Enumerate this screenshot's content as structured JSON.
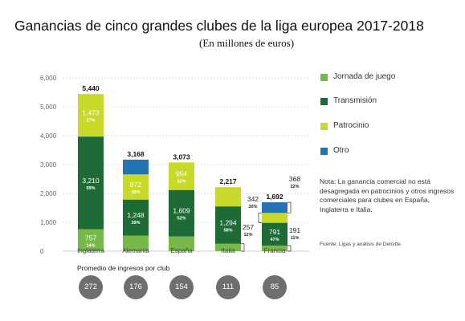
{
  "title": "Ganancias de cinco grandes clubes de la liga europea 2017-2018",
  "subtitle": "(En millones de euros)",
  "chart_data": {
    "type": "bar",
    "stacked": true,
    "ylim": [
      0,
      6000
    ],
    "yticks": [
      "0",
      "1,000",
      "2,000",
      "3,000",
      "4,000",
      "5,000",
      "6,000"
    ],
    "ytick_values": [
      0,
      1000,
      2000,
      3000,
      4000,
      5000,
      6000
    ],
    "grid": true,
    "legend_position": "right",
    "categories": [
      "Inglaterra",
      "Alemania",
      "España",
      "Italia",
      "Francia"
    ],
    "totals": [
      "5,440",
      "3,168",
      "3,073",
      "2,217",
      "1,692"
    ],
    "series": [
      {
        "name": "Jornada de juego",
        "color": "#78b84a",
        "values": [
          757,
          538,
          510,
          257,
          191
        ],
        "labels": [
          "757",
          "538",
          "510",
          "257",
          "191"
        ],
        "pct": [
          "14%",
          "17%",
          "17%",
          "12%",
          "11%"
        ]
      },
      {
        "name": "Transmisión",
        "color": "#1f6b35",
        "values": [
          3210,
          1248,
          1609,
          1294,
          791
        ],
        "labels": [
          "3,210",
          "1,248",
          "1,609",
          "1,294",
          "791"
        ],
        "pct": [
          "59%",
          "39%",
          "52%",
          "58%",
          "47%"
        ]
      },
      {
        "name": "Patrocinio",
        "color": "#c8d92a",
        "values": [
          1473,
          872,
          954,
          666,
          342
        ],
        "labels": [
          "1,473",
          "872",
          "954",
          "666",
          "342"
        ],
        "pct": [
          "27%",
          "28%",
          "31%",
          "30%",
          "20%"
        ]
      },
      {
        "name": "Otro",
        "color": "#2473b5",
        "values": [
          0,
          510,
          0,
          0,
          368
        ],
        "labels": [
          "",
          "510",
          "",
          "",
          "368"
        ],
        "pct": [
          "",
          "16%",
          "",
          "",
          "22%"
        ]
      }
    ],
    "average_title": "Promedio de ingresos por club",
    "averages": [
      "272",
      "176",
      "154",
      "111",
      "85"
    ]
  },
  "note": "Nota: La ganancia comercial no está desagregada en patrocinios y otros ingresos comerciales para clubes en España, Inglaterra e Italia.",
  "source": "Fuente: Ligas y análisis de Deloitte."
}
